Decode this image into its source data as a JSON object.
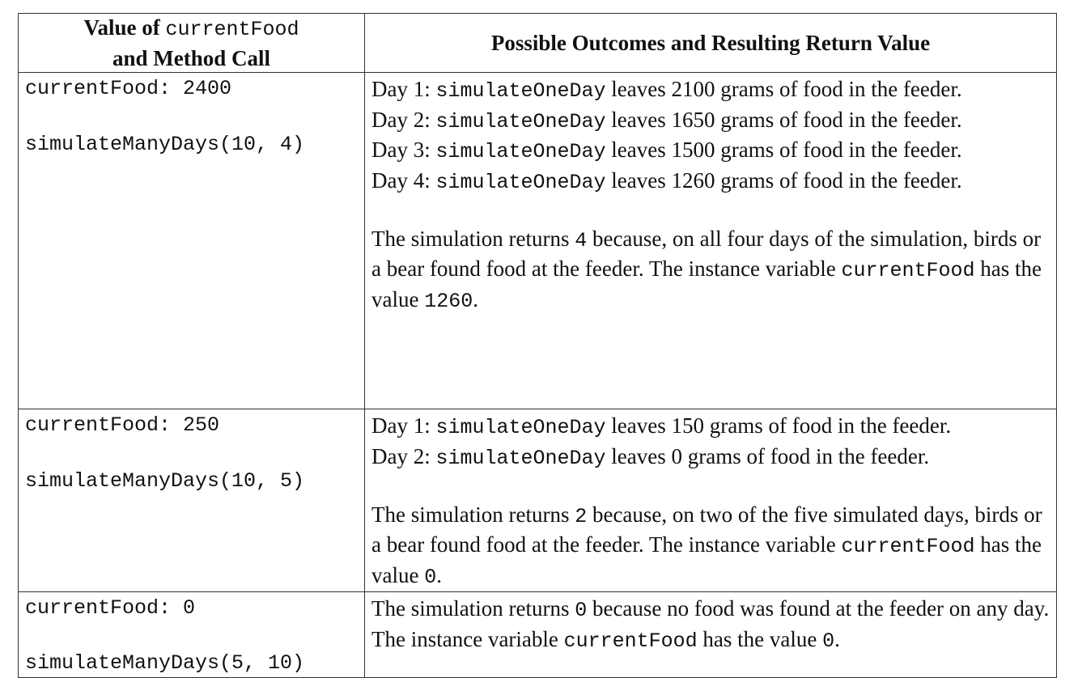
{
  "table": {
    "header": {
      "left": [
        [
          "Value of ",
          "currentFood"
        ],
        [
          "and Method Call"
        ]
      ],
      "right": "Possible Outcomes and Resulting Return Value"
    },
    "rows": [
      {
        "food": "currentFood: 2400",
        "method": "simulateManyDays(10, 4)",
        "days": [
          [
            "Day 1: ",
            "simulateOneDay",
            " leaves 2100 grams of food in the feeder."
          ],
          [
            "Day 2: ",
            "simulateOneDay",
            " leaves 1650 grams of food in the feeder."
          ],
          [
            "Day 3: ",
            "simulateOneDay",
            " leaves 1500 grams of food in the feeder."
          ],
          [
            "Day 4: ",
            "simulateOneDay",
            " leaves 1260 grams of food in the feeder."
          ]
        ],
        "result": [
          "The simulation returns ",
          "4",
          " because, on all four days of the simulation, birds or a bear found food at the feeder. The instance variable ",
          "currentFood",
          " has the value ",
          "1260",
          "."
        ]
      },
      {
        "food": "currentFood: 250",
        "method": "simulateManyDays(10, 5)",
        "days": [
          [
            "Day 1: ",
            "simulateOneDay",
            " leaves 150 grams of food in the feeder."
          ],
          [
            "Day 2: ",
            "simulateOneDay",
            " leaves 0 grams of food in the feeder."
          ]
        ],
        "result": [
          "The simulation returns ",
          "2",
          " because, on two of the five simulated days, birds or a bear found food at the feeder. The instance variable ",
          "currentFood",
          " has the value ",
          "0",
          "."
        ]
      },
      {
        "food": "currentFood: 0",
        "method": "simulateManyDays(5, 10)",
        "days": [],
        "result": [
          "The simulation returns ",
          "0",
          " because no food was found at the feeder on any day. The instance variable ",
          "currentFood",
          " has the value ",
          "0",
          "."
        ]
      }
    ]
  }
}
